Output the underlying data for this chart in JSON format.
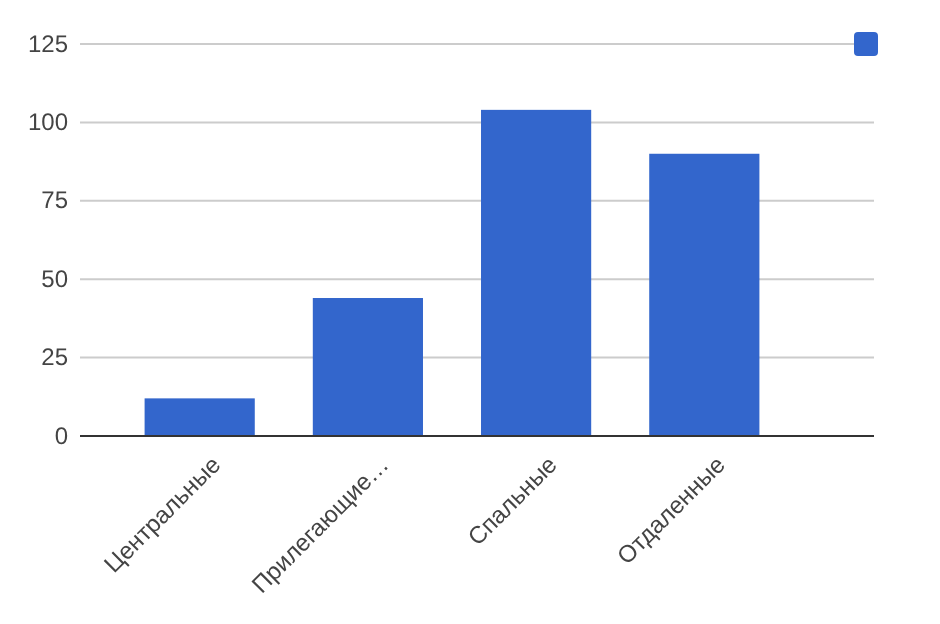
{
  "chart_data": {
    "type": "bar",
    "categories": [
      "Центральные",
      "Прилегающие…",
      "Спальные",
      "Отдаленные"
    ],
    "series": [
      {
        "color": "#3366cc",
        "values": [
          12,
          44,
          104,
          90
        ]
      }
    ],
    "ylim": [
      0,
      125
    ],
    "yticks": [
      0,
      25,
      50,
      75,
      100,
      125
    ],
    "grid": "y"
  }
}
